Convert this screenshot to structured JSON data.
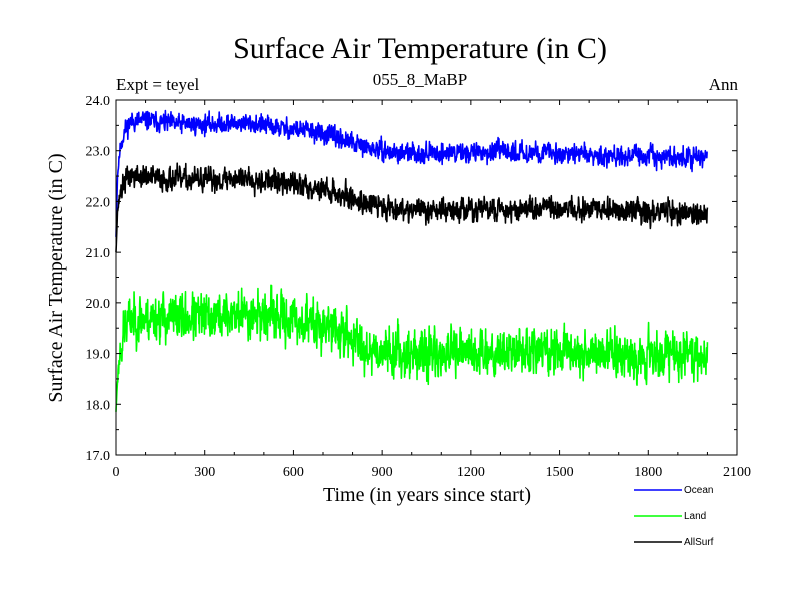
{
  "chart_data": {
    "type": "line",
    "title": "Surface Air Temperature (in C)",
    "subtitle_left": "Expt = teyel",
    "subtitle_center": "055_8_MaBP",
    "subtitle_right": "Ann",
    "xlabel": "Time (in years since start)",
    "ylabel": "Surface Air Temperature (in C)",
    "xlim": [
      0,
      2100
    ],
    "ylim": [
      17.0,
      24.0
    ],
    "xticks": [
      0,
      300,
      600,
      900,
      1200,
      1500,
      1800,
      2100
    ],
    "xtick_labels": [
      "0",
      "300",
      "600",
      "900",
      "1200",
      "1500",
      "1800",
      "2100"
    ],
    "yticks": [
      17.0,
      18.0,
      19.0,
      20.0,
      21.0,
      22.0,
      23.0,
      24.0
    ],
    "ytick_labels": [
      "17.0",
      "18.0",
      "19.0",
      "20.0",
      "21.0",
      "22.0",
      "23.0",
      "24.0"
    ],
    "grid": false,
    "legend_position": "bottom-right",
    "series": [
      {
        "name": "Ocean",
        "color": "#0000ff",
        "noise": 0.09,
        "anchors": [
          [
            0,
            21.3
          ],
          [
            5,
            22.5
          ],
          [
            15,
            23.1
          ],
          [
            30,
            23.4
          ],
          [
            50,
            23.58
          ],
          [
            100,
            23.6
          ],
          [
            200,
            23.52
          ],
          [
            300,
            23.52
          ],
          [
            450,
            23.55
          ],
          [
            550,
            23.45
          ],
          [
            650,
            23.4
          ],
          [
            750,
            23.25
          ],
          [
            850,
            23.05
          ],
          [
            950,
            22.95
          ],
          [
            1100,
            22.95
          ],
          [
            1300,
            22.98
          ],
          [
            1500,
            22.95
          ],
          [
            1700,
            22.9
          ],
          [
            1800,
            22.88
          ],
          [
            2000,
            22.85
          ]
        ]
      },
      {
        "name": "Land",
        "color": "#00ff00",
        "noise": 0.22,
        "anchors": [
          [
            0,
            17.85
          ],
          [
            5,
            18.5
          ],
          [
            15,
            19.1
          ],
          [
            30,
            19.5
          ],
          [
            50,
            19.7
          ],
          [
            150,
            19.72
          ],
          [
            300,
            19.7
          ],
          [
            450,
            19.8
          ],
          [
            550,
            19.7
          ],
          [
            700,
            19.55
          ],
          [
            780,
            19.35
          ],
          [
            850,
            19.1
          ],
          [
            1000,
            19.0
          ],
          [
            1100,
            18.98
          ],
          [
            1300,
            19.05
          ],
          [
            1500,
            19.05
          ],
          [
            1700,
            19.0
          ],
          [
            1850,
            18.98
          ],
          [
            2000,
            18.98
          ]
        ]
      },
      {
        "name": "AllSurf",
        "color": "#000000",
        "noise": 0.11,
        "anchors": [
          [
            0,
            21.0
          ],
          [
            5,
            21.8
          ],
          [
            15,
            22.2
          ],
          [
            30,
            22.4
          ],
          [
            50,
            22.5
          ],
          [
            150,
            22.45
          ],
          [
            300,
            22.42
          ],
          [
            450,
            22.47
          ],
          [
            550,
            22.38
          ],
          [
            700,
            22.25
          ],
          [
            800,
            22.05
          ],
          [
            900,
            21.9
          ],
          [
            1000,
            21.85
          ],
          [
            1100,
            21.82
          ],
          [
            1300,
            21.85
          ],
          [
            1500,
            21.85
          ],
          [
            1700,
            21.82
          ],
          [
            1850,
            21.8
          ],
          [
            2000,
            21.75
          ]
        ]
      }
    ]
  }
}
